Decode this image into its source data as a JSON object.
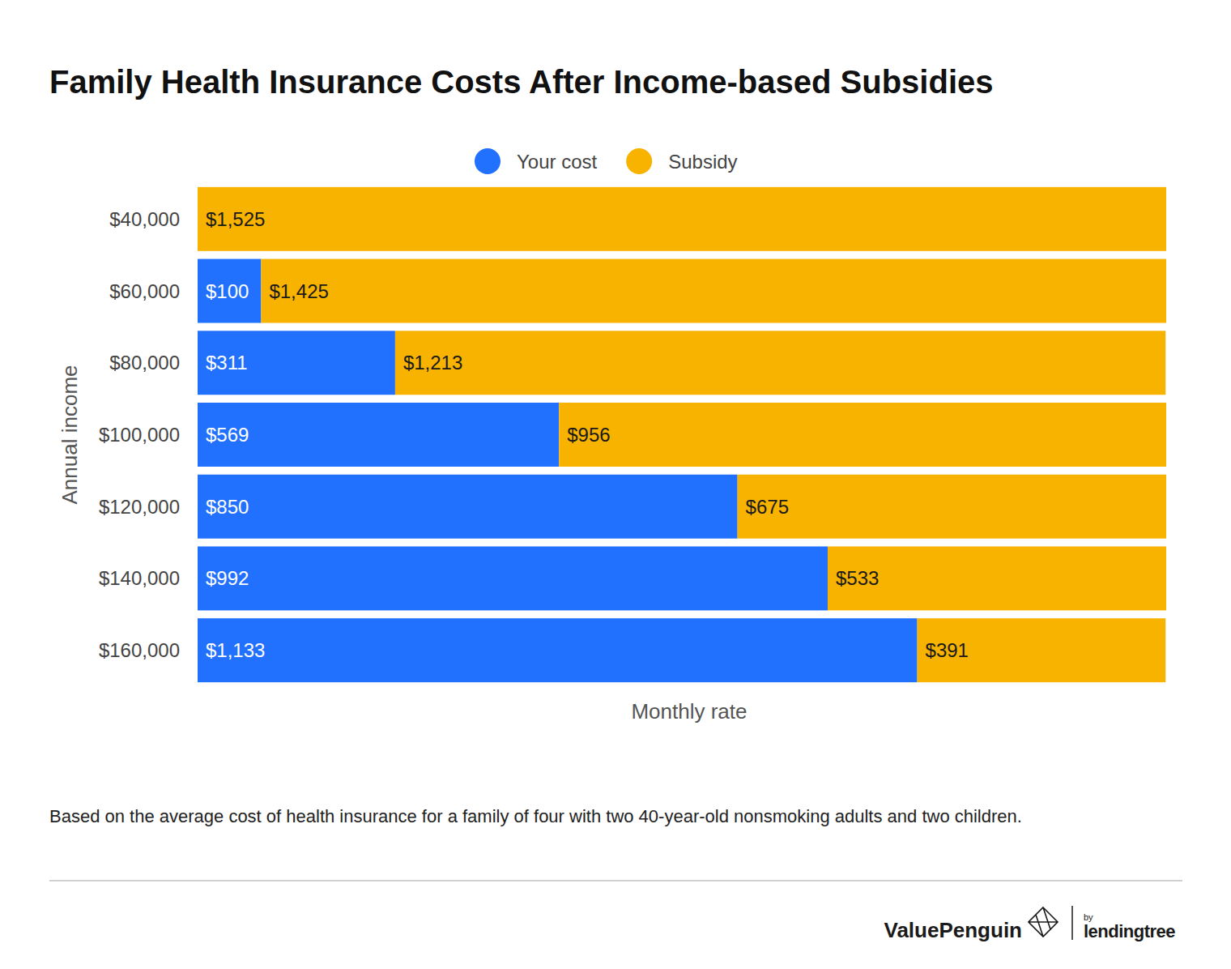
{
  "chart_data": {
    "type": "bar",
    "orientation": "horizontal",
    "stacked": true,
    "title": "Family Health Insurance Costs After Income-based Subsidies",
    "categories": [
      "$40,000",
      "$60,000",
      "$80,000",
      "$100,000",
      "$120,000",
      "$140,000",
      "$160,000"
    ],
    "series": [
      {
        "name": "Your cost",
        "color": "#2270fe",
        "values": [
          0,
          100,
          311,
          569,
          850,
          992,
          1133
        ],
        "value_labels": [
          null,
          "$100",
          "$311",
          "$569",
          "$850",
          "$992",
          "$1,133"
        ]
      },
      {
        "name": "Subsidy",
        "color": "#f8b300",
        "values": [
          1525,
          1425,
          1213,
          956,
          675,
          533,
          391
        ],
        "value_labels": [
          "$1,525",
          "$1,425",
          "$1,213",
          "$956",
          "$675",
          "$533",
          "$391"
        ]
      }
    ],
    "xlim": [
      0,
      1525
    ],
    "xlabel": "Monthly rate",
    "ylabel": "Annual income",
    "legend": "top",
    "data_labels": true,
    "tick_labels": "y",
    "grid": false,
    "footnote": "Based on the average cost of health insurance for a family of four with two 40-year-old nonsmoking adults and two children.",
    "branding": [
      "ValuePenguin",
      "by",
      "lendingtree"
    ]
  }
}
